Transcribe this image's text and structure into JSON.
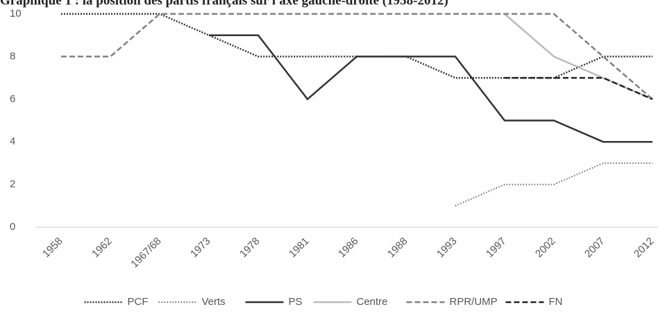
{
  "chart_data": {
    "type": "line",
    "title": "Graphique 1 : la position des partis français sur l'axe gauche-droite (1958-2012)",
    "categories": [
      "1958",
      "1962",
      "1967/68",
      "1973",
      "1978",
      "1981",
      "1986",
      "1988",
      "1993",
      "1997",
      "2002",
      "2007",
      "2012"
    ],
    "ylim": [
      0,
      10
    ],
    "yticks": [
      0,
      2,
      4,
      6,
      8,
      10
    ],
    "grid": false,
    "legend": "bottom",
    "series": [
      {
        "name": "PCF",
        "color": "#333333",
        "dash": "dotted",
        "values": [
          10,
          10,
          10,
          9,
          8,
          8,
          8,
          8,
          7,
          7,
          7,
          8,
          8
        ]
      },
      {
        "name": "Verts",
        "color": "#666666",
        "dash": "fine-dotted",
        "values": [
          null,
          null,
          null,
          null,
          null,
          null,
          null,
          null,
          1,
          2,
          2,
          3,
          3
        ]
      },
      {
        "name": "PS",
        "color": "#333333",
        "dash": "solid",
        "values": [
          null,
          null,
          null,
          9,
          9,
          6,
          8,
          8,
          8,
          5,
          5,
          4,
          4
        ]
      },
      {
        "name": "Centre",
        "color": "#bbbbbb",
        "dash": "solid",
        "values": [
          null,
          null,
          null,
          null,
          null,
          null,
          null,
          null,
          null,
          10,
          8,
          7,
          6
        ]
      },
      {
        "name": "RPR/UMP",
        "color": "#808080",
        "dash": "dashed",
        "values": [
          8,
          8,
          10,
          10,
          10,
          10,
          10,
          10,
          10,
          10,
          10,
          8,
          6
        ]
      },
      {
        "name": "FN",
        "color": "#222222",
        "dash": "dashed",
        "values": [
          null,
          null,
          null,
          null,
          null,
          null,
          null,
          null,
          null,
          7,
          7,
          7,
          6
        ]
      }
    ]
  }
}
